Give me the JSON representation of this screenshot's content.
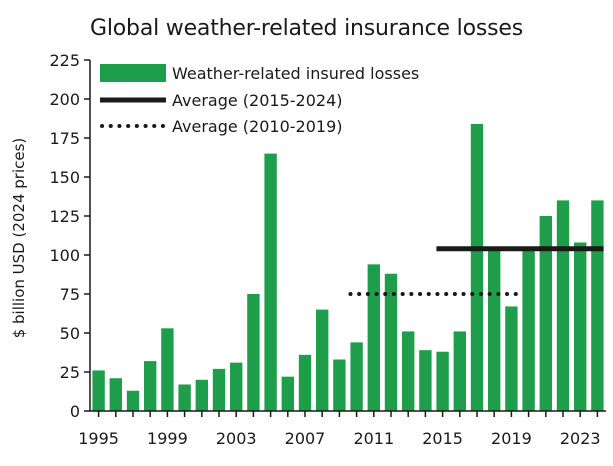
{
  "chart_data": {
    "type": "bar",
    "title": "Global weather-related insurance losses",
    "ylabel": "$ billion USD (2024 prices)",
    "xlabel": "",
    "ylim": [
      0,
      225
    ],
    "yticks": [
      0,
      25,
      50,
      75,
      100,
      125,
      150,
      175,
      200,
      225
    ],
    "xtick_labels": [
      "1995",
      "1999",
      "2003",
      "2007",
      "2011",
      "2015",
      "2019",
      "2023"
    ],
    "grid": false,
    "legend_position": "top-left",
    "categories": [
      "1995",
      "1996",
      "1997",
      "1998",
      "1999",
      "2000",
      "2001",
      "2002",
      "2003",
      "2004",
      "2005",
      "2006",
      "2007",
      "2008",
      "2009",
      "2010",
      "2011",
      "2012",
      "2013",
      "2014",
      "2015",
      "2016",
      "2017",
      "2018",
      "2019",
      "2020",
      "2021",
      "2022",
      "2023",
      "2024"
    ],
    "series": [
      {
        "name": "Weather-related insured losses",
        "type": "bar",
        "color": "#1e9e4a",
        "values": [
          26,
          21,
          13,
          32,
          53,
          17,
          20,
          27,
          31,
          75,
          165,
          22,
          36,
          65,
          33,
          44,
          94,
          88,
          51,
          39,
          38,
          51,
          184,
          105,
          67,
          103,
          125,
          135,
          108,
          135
        ]
      },
      {
        "name": "Average (2015-2024)",
        "type": "line",
        "style": "solid",
        "color": "#1a1a1a",
        "x_range": [
          "2015",
          "2024"
        ],
        "value": 104
      },
      {
        "name": "Average (2010-2019)",
        "type": "line",
        "style": "dotted",
        "color": "#1a1a1a",
        "x_range": [
          "2010",
          "2019"
        ],
        "value": 75
      }
    ]
  }
}
